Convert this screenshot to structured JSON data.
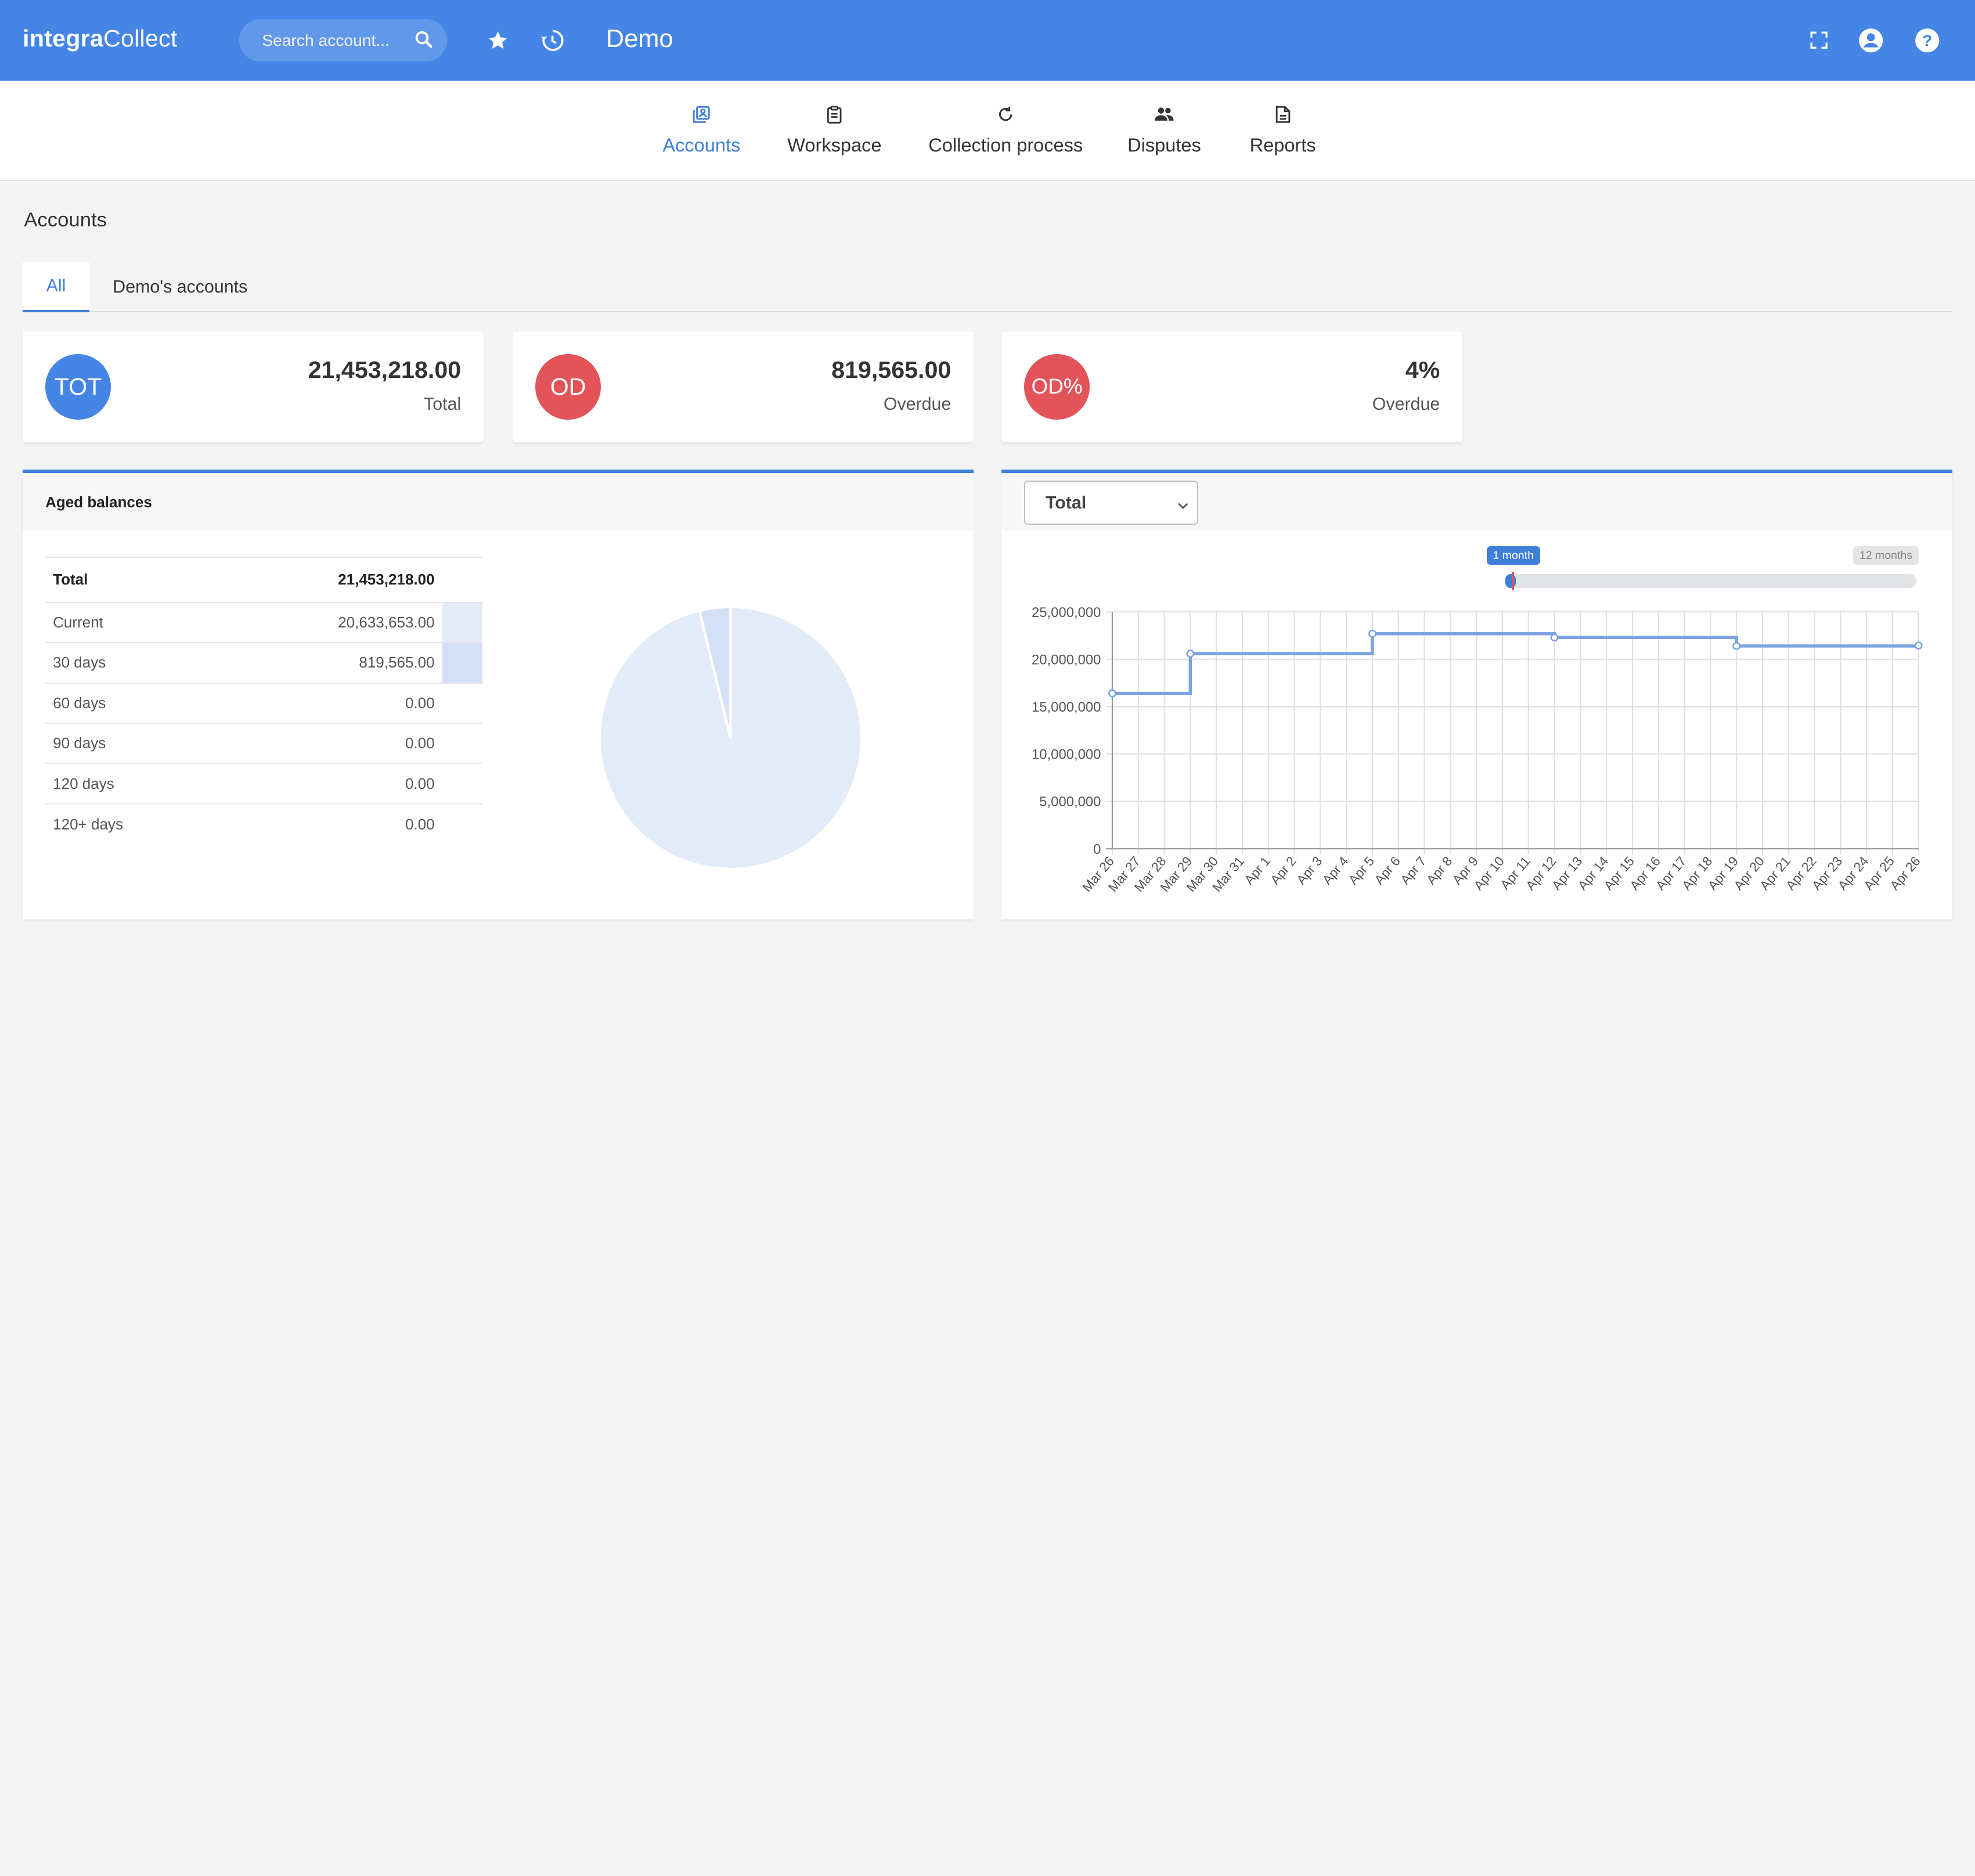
{
  "header": {
    "logo_bold": "integra",
    "logo_light": "Collect",
    "search_placeholder": "Search account...",
    "title": "Demo",
    "icons": [
      "search-icon",
      "star-icon",
      "history-icon",
      "fullscreen-icon",
      "account-icon",
      "help-icon"
    ]
  },
  "nav": {
    "items": [
      {
        "label": "Accounts",
        "icon": "accounts-icon",
        "active": true
      },
      {
        "label": "Workspace",
        "icon": "clipboard-icon",
        "active": false
      },
      {
        "label": "Collection process",
        "icon": "refresh-icon",
        "active": false
      },
      {
        "label": "Disputes",
        "icon": "people-icon",
        "active": false
      },
      {
        "label": "Reports",
        "icon": "document-icon",
        "active": false
      }
    ]
  },
  "page": {
    "title": "Accounts",
    "tabs": [
      {
        "label": "All",
        "active": true
      },
      {
        "label": "Demo's accounts",
        "active": false
      }
    ]
  },
  "kpis": [
    {
      "badge": "TOT",
      "value": "21,453,218.00",
      "label": "Total",
      "color": "#4585e6"
    },
    {
      "badge": "OD",
      "value": "819,565.00",
      "label": "Overdue",
      "color": "#e2535a"
    },
    {
      "badge": "OD%",
      "value": "4%",
      "label": "Overdue",
      "color": "#e2535a"
    }
  ],
  "aged": {
    "title": "Aged balances",
    "rows": [
      {
        "label": "Total",
        "value": "21,453,218.00"
      },
      {
        "label": "Current",
        "value": "20,633,653.00"
      },
      {
        "label": "30 days",
        "value": "819,565.00"
      },
      {
        "label": "60 days",
        "value": "0.00"
      },
      {
        "label": "90 days",
        "value": "0.00"
      },
      {
        "label": "120 days",
        "value": "0.00"
      },
      {
        "label": "120+ days",
        "value": "0.00"
      }
    ]
  },
  "trend": {
    "select_value": "Total",
    "range_start": "1 month",
    "range_end": "12 months"
  },
  "chart_data": [
    {
      "type": "pie",
      "labels": [
        "Current",
        "30 days"
      ],
      "values": [
        20633653,
        819565
      ],
      "colors": [
        "#e2ebf8",
        "#d4e0f5"
      ]
    },
    {
      "type": "line",
      "step": true,
      "x": [
        "Mar 26",
        "Mar 27",
        "Mar 28",
        "Mar 29",
        "Mar 30",
        "Mar 31",
        "Apr 1",
        "Apr 2",
        "Apr 3",
        "Apr 4",
        "Apr 5",
        "Apr 6",
        "Apr 7",
        "Apr 8",
        "Apr 9",
        "Apr 10",
        "Apr 11",
        "Apr 12",
        "Apr 13",
        "Apr 14",
        "Apr 15",
        "Apr 16",
        "Apr 17",
        "Apr 18",
        "Apr 19",
        "Apr 20",
        "Apr 21",
        "Apr 22",
        "Apr 23",
        "Apr 24",
        "Apr 25",
        "Apr 26"
      ],
      "points": [
        {
          "x": "Mar 26",
          "y": 16400000
        },
        {
          "x": "Mar 29",
          "y": 20600000
        },
        {
          "x": "Apr 5",
          "y": 22700000
        },
        {
          "x": "Apr 12",
          "y": 22300000
        },
        {
          "x": "Apr 19",
          "y": 21400000
        },
        {
          "x": "Apr 26",
          "y": 21453218
        }
      ],
      "ylim": [
        0,
        25000000
      ],
      "yticks": [
        "0",
        "5,000,000",
        "10,000,000",
        "15,000,000",
        "20,000,000",
        "25,000,000"
      ],
      "grid": true,
      "color": "#7ba3e3"
    }
  ]
}
